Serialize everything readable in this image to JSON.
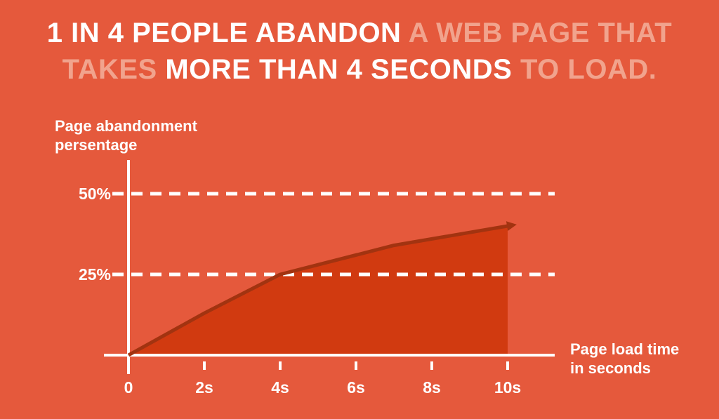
{
  "theme": {
    "background": "#E5593C",
    "text_strong": "#FFFFFF",
    "text_soft": "#F1A38D",
    "area_fill": "#D13A10",
    "line_stroke": "#A23310",
    "axis_color": "#FFFFFF"
  },
  "header": {
    "line1_strong": "1 IN 4 PEOPLE ABANDON ",
    "line1_soft": "A WEB PAGE THAT",
    "line2_soft_a": "TAKES ",
    "line2_strong": "MORE THAN 4 SECONDS",
    "line2_soft_b": " TO LOAD."
  },
  "chart_labels": {
    "y_title_line1": "Page abandonment",
    "y_title_line2": "persentage",
    "x_title_line1": "Page load time",
    "x_title_line2": "in seconds"
  },
  "chart_data": {
    "type": "area",
    "title": "1 in 4 people abandon a web page that takes more than 4 seconds to load.",
    "series_name": "Page abandonment percentage",
    "x": [
      0,
      2,
      4,
      7,
      10
    ],
    "values": [
      0,
      13,
      25,
      34,
      40
    ],
    "xlabel": "Page load time in seconds",
    "ylabel": "Page abandonment persentage",
    "xlim": [
      0,
      10
    ],
    "ylim": [
      0,
      60
    ],
    "x_tick_values": [
      0,
      2,
      4,
      6,
      8,
      10
    ],
    "x_tick_labels": [
      "0",
      "2s",
      "4s",
      "6s",
      "8s",
      "10s"
    ],
    "y_tick_values": [
      25,
      50
    ],
    "y_tick_labels": [
      "25%",
      "50%"
    ],
    "grid": "horizontal-dashed-white",
    "legend": "none",
    "arrow_end": true
  }
}
